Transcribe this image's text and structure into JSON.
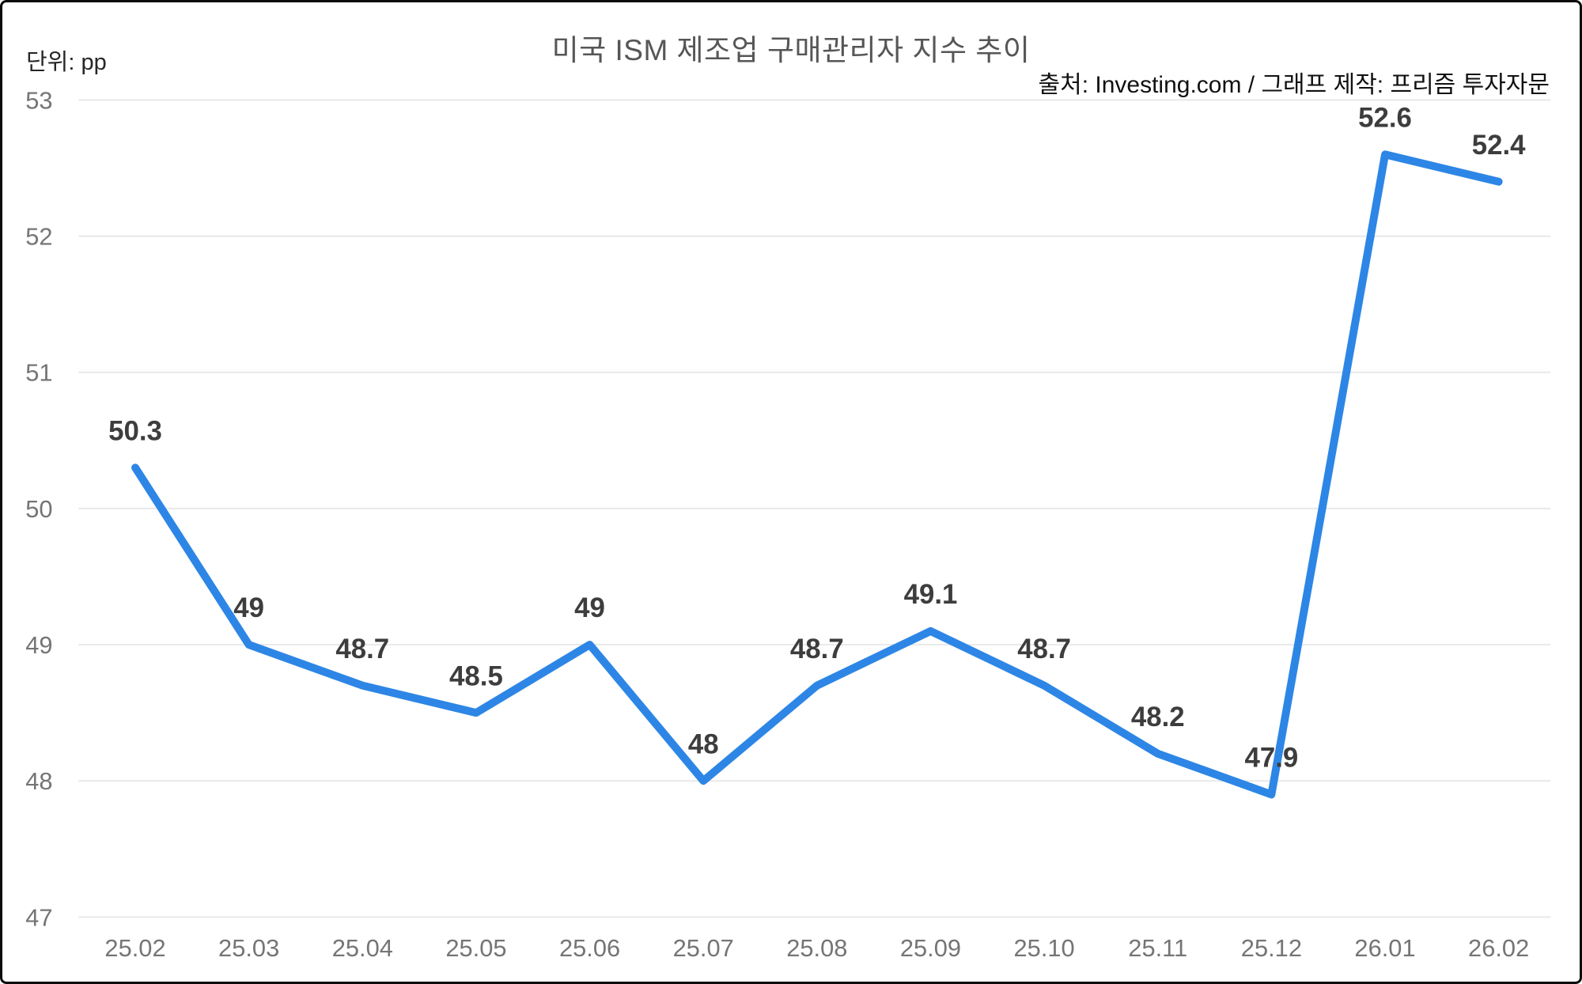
{
  "header": {
    "title": "미국 ISM 제조업 구매관리자 지수 추이",
    "unit_label": "단위: pp",
    "source_caption": "출처: Investing.com / 그래프 제작: 프리즘 투자자문"
  },
  "colors": {
    "line": "#2d86e5",
    "grid": "#e8e8e8",
    "axis_text": "#757575",
    "point_label_text": "#3d3d3d",
    "title_text": "#565656",
    "source_text": "#111111",
    "frame_border": "#0b0b0b"
  },
  "chart_data": {
    "type": "line",
    "title": "미국 ISM 제조업 구매관리자 지수 추이",
    "xlabel": "",
    "ylabel": "단위: pp",
    "categories": [
      "25.02",
      "25.03",
      "25.04",
      "25.05",
      "25.06",
      "25.07",
      "25.08",
      "25.09",
      "25.10",
      "25.11",
      "25.12",
      "26.01",
      "26.02"
    ],
    "values": [
      50.3,
      49,
      48.7,
      48.5,
      49,
      48,
      48.7,
      49.1,
      48.7,
      48.2,
      47.9,
      52.6,
      52.4
    ],
    "point_labels": [
      "50.3",
      "49",
      "48.7",
      "48.5",
      "49",
      "48",
      "48.7",
      "49.1",
      "48.7",
      "48.2",
      "47.9",
      "52.6",
      "52.4"
    ],
    "ylim": [
      47,
      53
    ],
    "yticks": [
      53,
      52,
      51,
      50,
      49,
      48,
      47
    ],
    "grid": "horizontal",
    "legend": "none",
    "source": "출처: Investing.com / 그래프 제작: 프리즘 투자자문"
  }
}
